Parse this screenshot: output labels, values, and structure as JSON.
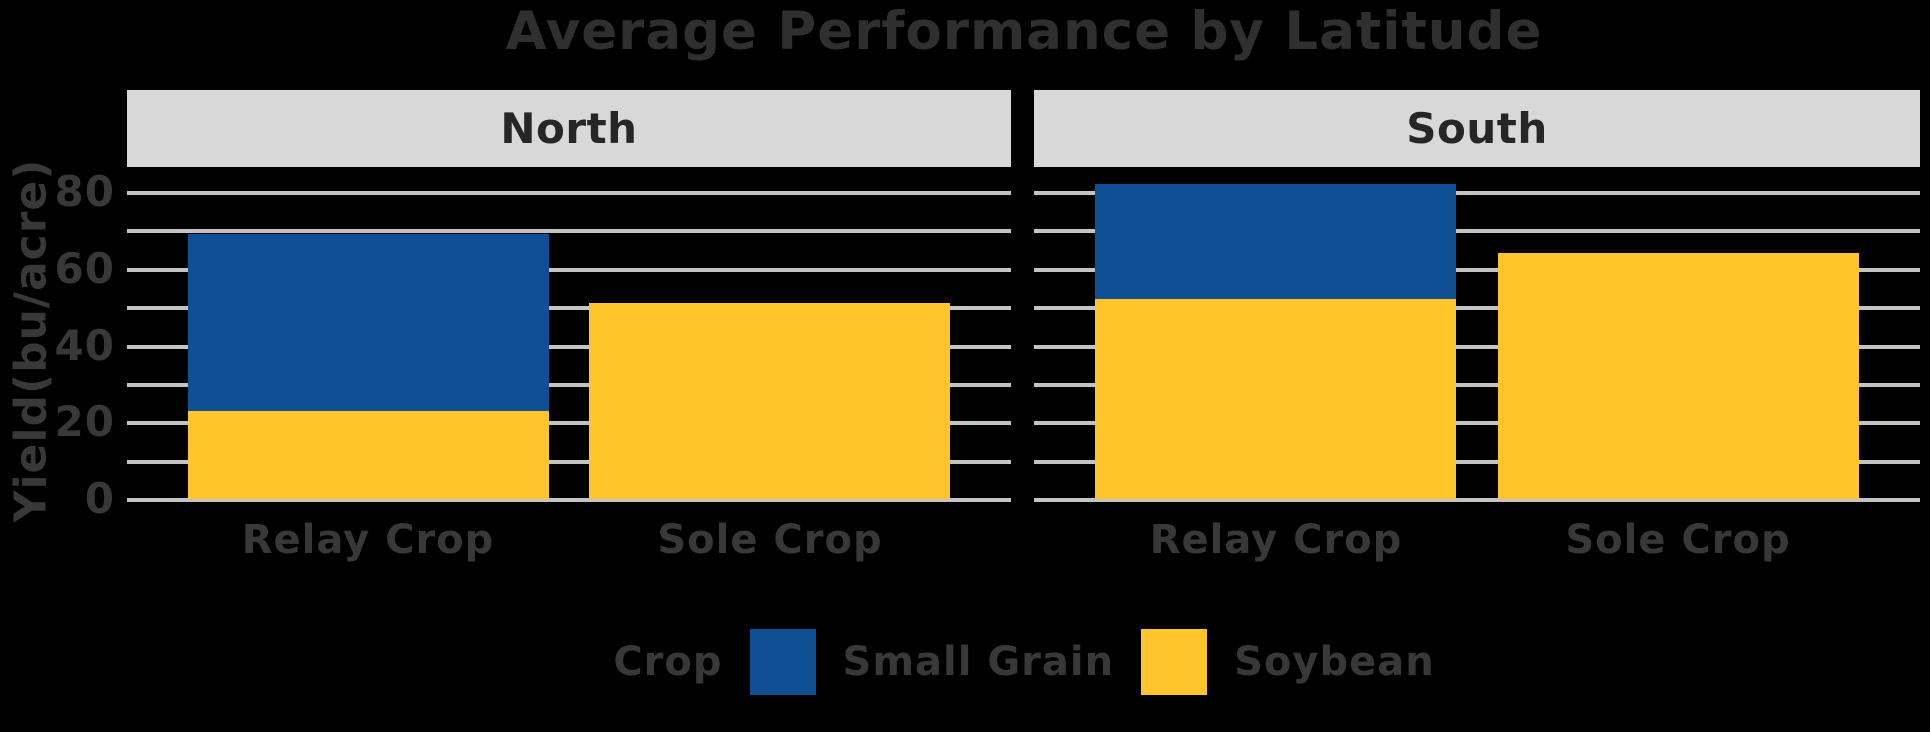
{
  "title": "Average Performance by Latitude",
  "y_axis": {
    "title": "Yield(bu/acre)",
    "tick_labels": [
      "0",
      "20",
      "40",
      "60",
      "80"
    ]
  },
  "x_axis": {
    "category_labels": [
      "Relay Crop",
      "Sole Crop"
    ]
  },
  "facet_strips": [
    "North",
    "South"
  ],
  "legend": {
    "title": "Crop",
    "items": [
      "Small Grain",
      "Soybean"
    ]
  },
  "colors": {
    "small_grain": "#0F4F93",
    "soybean": "#FFC52B",
    "gridline": "#C4C4C4",
    "strip_background": "#D8D8D8",
    "strip_text": "#262626",
    "axis_text": "#383838",
    "title_text": "#2F2F2F",
    "background": "#000000"
  },
  "chart_data": {
    "type": "bar",
    "stacked": true,
    "title": "Average Performance by Latitude",
    "ylabel": "Yield(bu/acre)",
    "xlabel": "",
    "ylim": [
      0,
      87
    ],
    "yticks": [
      0,
      20,
      40,
      60,
      80
    ],
    "gridline_step": 10,
    "grid": true,
    "legend_position": "bottom",
    "legend_title": "Crop",
    "legend_items": [
      "Small Grain",
      "Soybean"
    ],
    "series_colors": {
      "Small Grain": "#0F4F93",
      "Soybean": "#FFC52B"
    },
    "facets": [
      {
        "label": "North",
        "categories": [
          "Relay Crop",
          "Sole Crop"
        ],
        "series": [
          {
            "name": "Soybean",
            "values": [
              23,
              51
            ]
          },
          {
            "name": "Small Grain",
            "values": [
              46,
              0
            ]
          }
        ]
      },
      {
        "label": "South",
        "categories": [
          "Relay Crop",
          "Sole Crop"
        ],
        "series": [
          {
            "name": "Soybean",
            "values": [
              52,
              64
            ]
          },
          {
            "name": "Small Grain",
            "values": [
              30,
              0
            ]
          }
        ]
      }
    ]
  }
}
